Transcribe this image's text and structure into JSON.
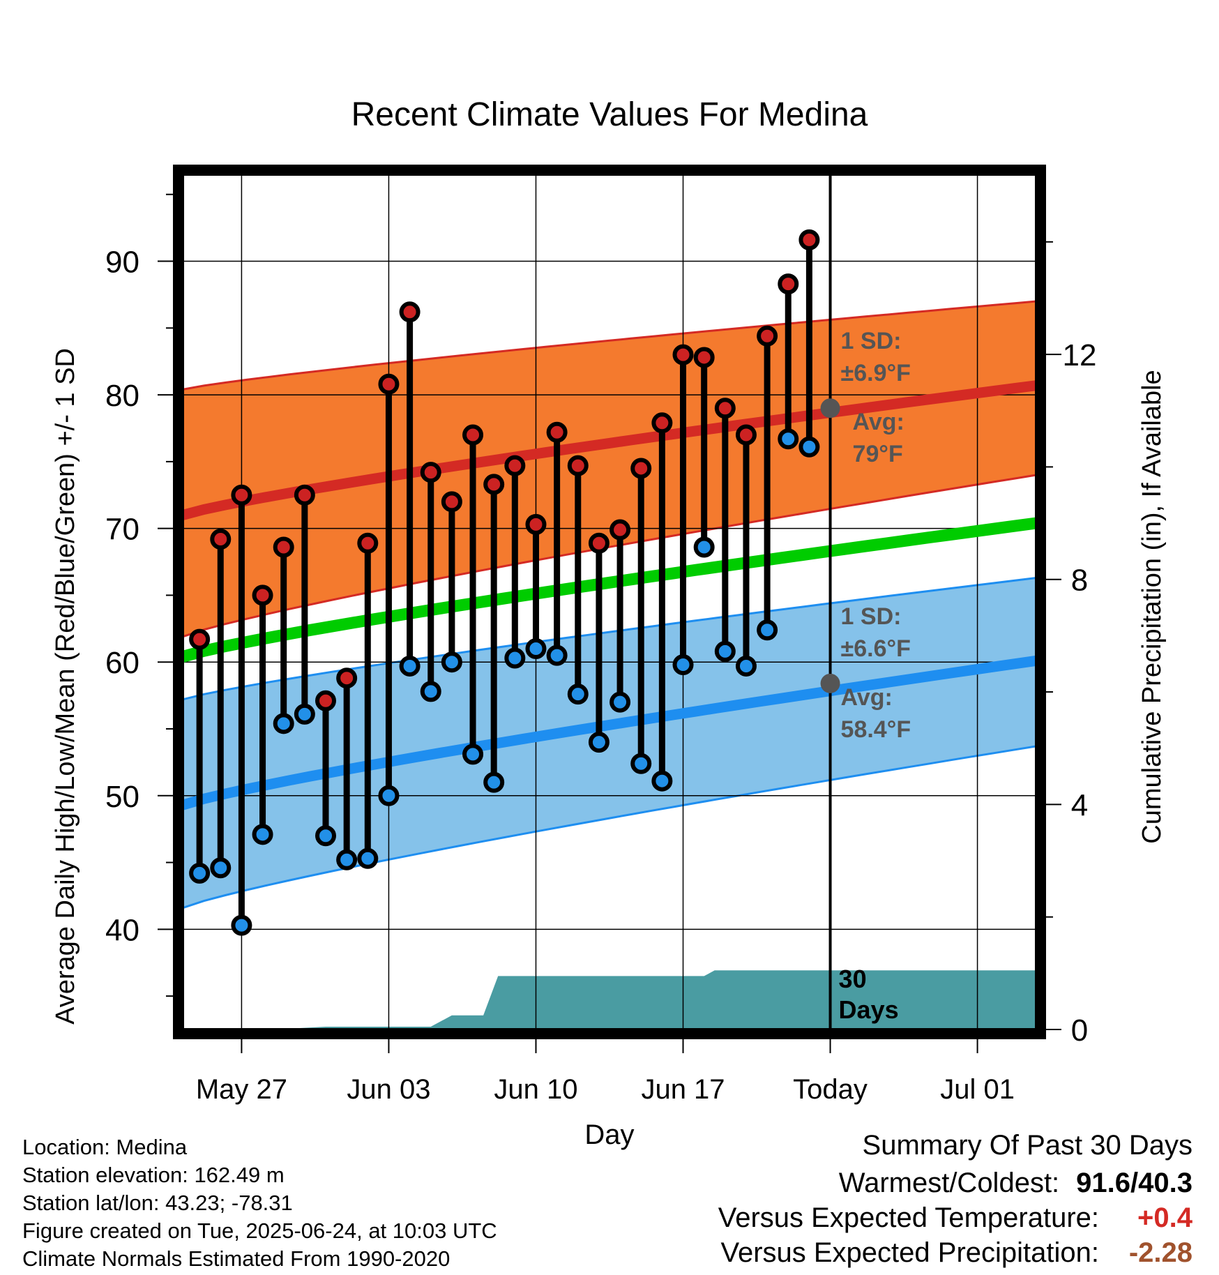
{
  "chart_data": {
    "type": "line",
    "title": "Recent Climate Values For Medina",
    "xlabel": "Day",
    "ylabel_left": "Average Daily High/Low/Mean (Red/Blue/Green) +/- 1 SD",
    "ylabel_right": "Cumulative Precipitation (in), If Available",
    "x_ticks": [
      "May 27",
      "Jun 03",
      "Jun 10",
      "Jun 17",
      "Today",
      "Jul 01"
    ],
    "x_tick_days": [
      0,
      7,
      14,
      21,
      28,
      35
    ],
    "x_range_days": [
      -2.8,
      37.8
    ],
    "y_left_range": [
      32.5,
      96.5
    ],
    "y_left_ticks": [
      40,
      50,
      60,
      70,
      80,
      90
    ],
    "y_right_ticks": [
      0,
      4,
      8,
      12
    ],
    "y_right_range": [
      0,
      15.2
    ],
    "grid": true,
    "today_day": 28,
    "daily": {
      "day": [
        -2,
        -1,
        0,
        1,
        2,
        3,
        4,
        5,
        6,
        7,
        8,
        9,
        10,
        11,
        12,
        13,
        14,
        15,
        16,
        17,
        18,
        19,
        20,
        21,
        22,
        23,
        24,
        25,
        26,
        27
      ],
      "high": [
        61.7,
        69.2,
        72.5,
        65.0,
        68.6,
        72.5,
        57.1,
        58.8,
        68.9,
        80.8,
        86.2,
        74.2,
        72.0,
        77.0,
        73.3,
        74.7,
        70.3,
        77.2,
        74.7,
        68.9,
        69.9,
        74.5,
        77.9,
        83.0,
        82.8,
        79.0,
        77.0,
        84.4,
        88.3,
        91.6
      ],
      "low": [
        44.2,
        44.6,
        40.3,
        47.1,
        55.4,
        56.1,
        47.0,
        45.2,
        45.3,
        50.0,
        59.7,
        57.8,
        60.0,
        53.1,
        51.0,
        60.3,
        61.0,
        60.5,
        57.6,
        54.0,
        57.0,
        52.4,
        51.1,
        59.8,
        68.6,
        60.8,
        59.7,
        62.4,
        76.7,
        76.1
      ],
      "low_above_high_sd_minus": [
        false,
        false,
        false,
        false,
        false,
        false,
        false,
        false,
        false,
        false,
        false,
        false,
        false,
        false,
        false,
        false,
        false,
        false,
        false,
        false,
        false,
        false,
        false,
        false,
        false,
        false,
        false,
        false,
        true,
        true
      ]
    },
    "normals": {
      "day": [
        -2.8,
        37.8
      ],
      "high_avg": [
        71.0,
        80.7
      ],
      "low_avg": [
        49.3,
        60.1
      ],
      "mean_avg": [
        60.4,
        70.4
      ],
      "high_sd": 6.9,
      "low_sd": 6.6,
      "high_sd_top_start": 80.4,
      "high_sd_top_end": 87.0,
      "high_sd_bottom_start": 61.9,
      "high_sd_bottom_end": 74.0,
      "low_sd_top_start": 57.2,
      "low_sd_top_end": 66.3,
      "low_sd_bottom_start": 41.6,
      "low_sd_bottom_end": 53.7
    },
    "precipitation": {
      "day": [
        -2.8,
        1.5,
        4.0,
        6.0,
        9.0,
        10.0,
        11.5,
        12.2,
        18.0,
        22.0,
        22.5,
        28.0,
        37.8
      ],
      "value": [
        0.0,
        0.0,
        0.05,
        0.05,
        0.05,
        0.25,
        0.25,
        0.95,
        0.95,
        0.95,
        1.05,
        1.05,
        1.05
      ]
    },
    "annotations": {
      "high_sd_label": "1 SD:",
      "high_sd_value": "±6.9°F",
      "high_avg_label": "Avg:",
      "high_avg_value": "79°F",
      "high_avg_point": 79.0,
      "low_sd_label": "1 SD:",
      "low_sd_value": "±6.6°F",
      "low_avg_label": "Avg:",
      "low_avg_value": "58.4°F",
      "low_avg_point": 58.4,
      "window_line1": "30",
      "window_line2": "Days"
    },
    "colors": {
      "high_band": "#F47A2E",
      "high_line": "#D42A24",
      "low_band": "#85C2EA",
      "low_line": "#1E8EF0",
      "mean_line": "#00CC00",
      "precip": "#4A9CA2",
      "high_marker": "#CC2222",
      "low_marker": "#2290E8",
      "avg_marker": "#555555"
    }
  },
  "footer": {
    "location": "Location: Medina",
    "elevation": "Station elevation: 162.49 m",
    "latlon": "Station lat/lon: 43.23; -78.31",
    "created": "Figure created on Tue, 2025-06-24, at 10:03 UTC",
    "normals": "Climate Normals Estimated From 1990-2020"
  },
  "summary": {
    "title": "Summary Of Past 30 Days",
    "warm_cold_label": "Warmest/Coldest:",
    "warm_cold_value": "91.6/40.3",
    "temp_label": "Versus Expected Temperature:",
    "temp_value": "+0.4",
    "temp_color": "#D42A24",
    "precip_label": "Versus Expected Precipitation:",
    "precip_value": "-2.28",
    "precip_color": "#A0522D"
  }
}
